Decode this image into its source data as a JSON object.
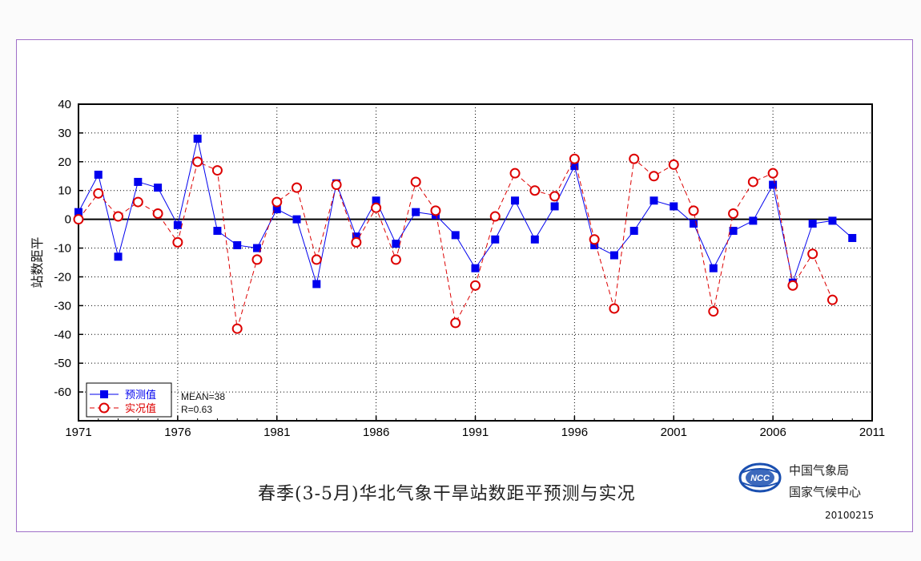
{
  "chart_data": {
    "type": "line",
    "title": "春季(3-5月)华北气象干旱站数距平预测与实况",
    "xlabel": "",
    "ylabel": "站数距平",
    "xlim": [
      1971,
      2011
    ],
    "ylim": [
      -70,
      40
    ],
    "xticks": [
      "1971",
      "1976",
      "1981",
      "1986",
      "1991",
      "1996",
      "2001",
      "2006",
      "2011"
    ],
    "yticks": [
      "40",
      "30",
      "20",
      "10",
      "0",
      "-10",
      "-20",
      "-30",
      "-40",
      "-50",
      "-60"
    ],
    "grid": true,
    "legend_position": "bottom-left",
    "stats": {
      "mean": "MEAN=38",
      "r": "R=0.63"
    },
    "series": [
      {
        "name": "预测值",
        "color": "#0000ee",
        "style": "solid",
        "marker": "square",
        "x": [
          1971,
          1972,
          1973,
          1974,
          1975,
          1976,
          1977,
          1978,
          1979,
          1980,
          1981,
          1982,
          1983,
          1984,
          1985,
          1986,
          1987,
          1988,
          1989,
          1990,
          1991,
          1992,
          1993,
          1994,
          1995,
          1996,
          1997,
          1998,
          1999,
          2000,
          2001,
          2002,
          2003,
          2004,
          2005,
          2006,
          2007,
          2008,
          2009,
          2010
        ],
        "values": [
          2.5,
          15.5,
          -13,
          13,
          11,
          -2,
          28,
          -4,
          -9,
          -10,
          3.5,
          0,
          -22.5,
          12.5,
          -6,
          6.5,
          -8.5,
          2.5,
          1.5,
          -5.5,
          -17,
          -7,
          6.5,
          -7,
          4.5,
          18.5,
          -9,
          -12.5,
          -4,
          6.5,
          4.5,
          -1.5,
          -17,
          -4,
          -0.5,
          12,
          -22,
          -1.5,
          -0.5,
          -6.5
        ]
      },
      {
        "name": "实况值",
        "color": "#dd0000",
        "style": "dashed",
        "marker": "circle",
        "x": [
          1971,
          1972,
          1973,
          1974,
          1975,
          1976,
          1977,
          1978,
          1979,
          1980,
          1981,
          1982,
          1983,
          1984,
          1985,
          1986,
          1987,
          1988,
          1989,
          1990,
          1991,
          1992,
          1993,
          1994,
          1995,
          1996,
          1997,
          1998,
          1999,
          2000,
          2001,
          2002,
          2003,
          2004,
          2005,
          2006,
          2007,
          2008,
          2009
        ],
        "values": [
          0,
          9,
          1,
          6,
          2,
          -8,
          20,
          17,
          -38,
          -14,
          6,
          11,
          -14,
          12,
          -8,
          4,
          -14,
          13,
          3,
          -36,
          -23,
          1,
          16,
          10,
          8,
          21,
          -7,
          -31,
          21,
          15,
          19,
          3,
          -32,
          2,
          13,
          16,
          -23,
          -12,
          -28
        ]
      }
    ]
  },
  "footer": {
    "org_line1": "中国气象局",
    "org_line2": "国家气候中心",
    "logo_text": "NCC",
    "date": "20100215"
  }
}
